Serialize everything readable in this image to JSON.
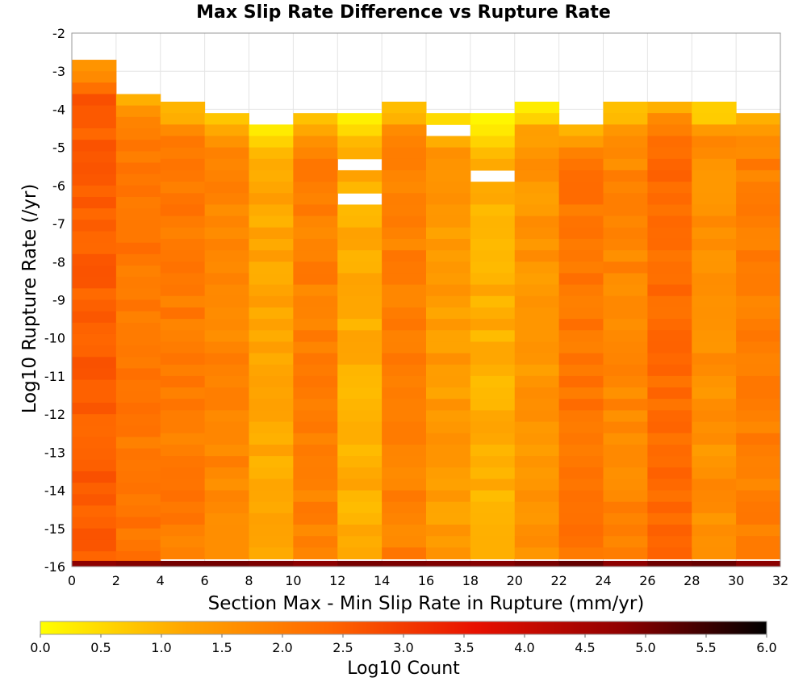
{
  "chart_data": {
    "type": "heatmap",
    "title": "Max Slip Rate Difference vs Rupture Rate",
    "xlabel": "Section Max - Min Slip Rate in Rupture (mm/yr)",
    "ylabel": "Log10 Rupture Rate (/yr)",
    "xlim": [
      0,
      32
    ],
    "ylim": [
      -16,
      -2
    ],
    "x_ticks": [
      "0",
      "2",
      "4",
      "6",
      "8",
      "10",
      "12",
      "14",
      "16",
      "18",
      "20",
      "22",
      "24",
      "26",
      "28",
      "30",
      "32"
    ],
    "y_ticks": [
      "-2",
      "-3",
      "-4",
      "-5",
      "-6",
      "-7",
      "-8",
      "-9",
      "-10",
      "-11",
      "-12",
      "-13",
      "-14",
      "-15",
      "-16"
    ],
    "grid": true,
    "bin_width_x": 2,
    "bin_height_y": 0.3,
    "colorbar": {
      "label": "Log10 Count",
      "range": [
        0,
        6
      ],
      "ticks": [
        "0.0",
        "0.5",
        "1.0",
        "1.5",
        "2.0",
        "2.5",
        "3.0",
        "3.5",
        "4.0",
        "4.5",
        "5.0",
        "5.5",
        "6.0"
      ],
      "colormap": "heat (yellow-orange-red-black)",
      "colors": [
        "#ffff00",
        "#ffa500",
        "#ff6600",
        "#e81000",
        "#900000",
        "#000000"
      ]
    },
    "columns": [
      {
        "x_start": 0,
        "y_top": -2.7,
        "level": 2.5,
        "gaps": []
      },
      {
        "x_start": 2,
        "y_top": -3.6,
        "level": 2.1,
        "gaps": []
      },
      {
        "x_start": 4,
        "y_top": -3.8,
        "level": 2.0,
        "gaps": []
      },
      {
        "x_start": 6,
        "y_top": -4.1,
        "level": 1.8,
        "gaps": []
      },
      {
        "x_start": 8,
        "y_top": -4.4,
        "level": 1.2,
        "gaps": []
      },
      {
        "x_start": 10,
        "y_top": -4.1,
        "level": 1.9,
        "gaps": []
      },
      {
        "x_start": 12,
        "y_top": -4.1,
        "level": 1.1,
        "gaps": [
          -5.3,
          -6.2
        ]
      },
      {
        "x_start": 14,
        "y_top": -3.8,
        "level": 1.9,
        "gaps": []
      },
      {
        "x_start": 16,
        "y_top": -4.1,
        "level": 1.4,
        "gaps": [
          -4.4
        ]
      },
      {
        "x_start": 18,
        "y_top": -4.1,
        "level": 1.1,
        "gaps": [
          -5.6
        ]
      },
      {
        "x_start": 20,
        "y_top": -3.8,
        "level": 1.5,
        "gaps": []
      },
      {
        "x_start": 22,
        "y_top": -4.4,
        "level": 2.1,
        "gaps": []
      },
      {
        "x_start": 24,
        "y_top": -3.8,
        "level": 1.8,
        "gaps": []
      },
      {
        "x_start": 26,
        "y_top": -3.8,
        "level": 2.3,
        "gaps": []
      },
      {
        "x_start": 28,
        "y_top": -3.8,
        "level": 1.6,
        "gaps": []
      },
      {
        "x_start": 30,
        "y_top": -4.1,
        "level": 1.9,
        "gaps": []
      }
    ],
    "bottom_row": {
      "y_start": -16,
      "y_end": -15.85,
      "level": 5.0
    }
  }
}
